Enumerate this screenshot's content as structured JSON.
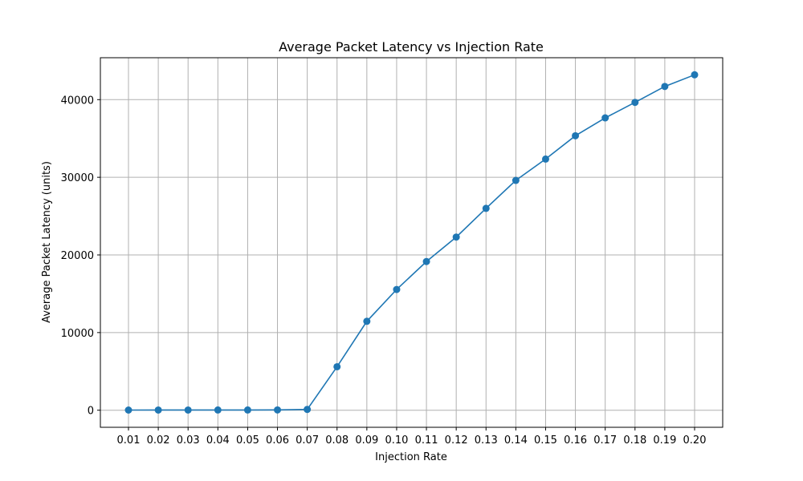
{
  "chart_data": {
    "type": "line",
    "title": "Average Packet Latency vs Injection Rate",
    "xlabel": "Injection Rate",
    "ylabel": "Average Packet Latency (units)",
    "x": [
      "0.01",
      "0.02",
      "0.03",
      "0.04",
      "0.05",
      "0.06",
      "0.07",
      "0.08",
      "0.09",
      "0.10",
      "0.11",
      "0.12",
      "0.13",
      "0.14",
      "0.15",
      "0.16",
      "0.17",
      "0.18",
      "0.19",
      "0.20"
    ],
    "series": [
      {
        "values": [
          20,
          22,
          25,
          27,
          30,
          35,
          100,
          5600,
          11450,
          15550,
          19150,
          22300,
          26000,
          29600,
          32350,
          35350,
          37650,
          39650,
          41700,
          43200
        ],
        "color": "#1f77b4",
        "marker": "circle"
      }
    ],
    "yticks": [
      0,
      10000,
      20000,
      30000,
      40000
    ],
    "ylim": [
      -2200,
      45400
    ],
    "grid": true,
    "legend": "none"
  }
}
